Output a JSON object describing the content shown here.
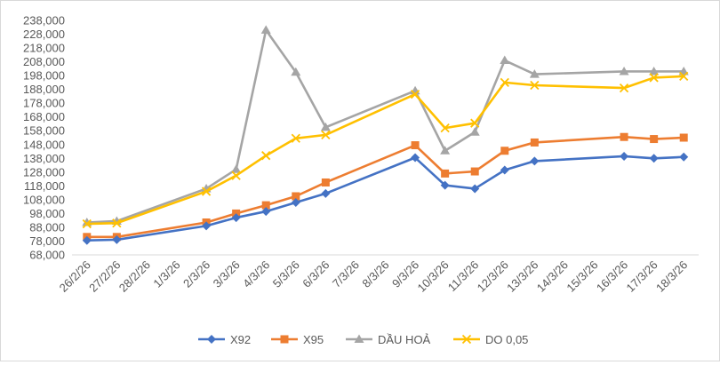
{
  "chart_data": {
    "type": "line",
    "title": "",
    "xlabel": "",
    "ylabel": "",
    "categories": [
      "26/2/26",
      "27/2/26",
      "28/2/26",
      "1/3/26",
      "2/3/26",
      "3/3/26",
      "4/3/26",
      "5/3/26",
      "6/3/26",
      "7/3/26",
      "8/3/26",
      "9/3/26",
      "10/3/26",
      "11/3/26",
      "12/3/26",
      "13/3/26",
      "14/3/26",
      "15/3/26",
      "16/3/26",
      "17/3/26",
      "18/3/26"
    ],
    "y_ticks": [
      "68,000",
      "78,000",
      "88,000",
      "98,000",
      "108,000",
      "118,000",
      "128,000",
      "138,000",
      "148,000",
      "158,000",
      "168,000",
      "178,000",
      "188,000",
      "198,000",
      "208,000",
      "218,000",
      "228,000",
      "238,000"
    ],
    "ylim": [
      68000,
      238000
    ],
    "grid": false,
    "legend_position": "bottom",
    "series": [
      {
        "name": "X92",
        "color": "#4472C4",
        "marker": "diamond",
        "values": [
          78500,
          79000,
          null,
          null,
          89000,
          95000,
          99500,
          106000,
          112500,
          null,
          null,
          138500,
          118500,
          116000,
          129500,
          136000,
          null,
          null,
          139500,
          138000,
          139000
        ]
      },
      {
        "name": "X95",
        "color": "#ED7D31",
        "marker": "square",
        "values": [
          81000,
          81000,
          null,
          null,
          91500,
          98000,
          104000,
          110500,
          120500,
          null,
          null,
          147500,
          127000,
          128500,
          143500,
          149500,
          null,
          null,
          153500,
          152000,
          153000
        ]
      },
      {
        "name": "DẦU HOẢ",
        "color": "#A5A5A5",
        "marker": "triangle",
        "values": [
          91500,
          92500,
          null,
          null,
          116000,
          130000,
          231000,
          200500,
          160500,
          null,
          null,
          187000,
          143500,
          157000,
          209000,
          199000,
          null,
          null,
          201000,
          201000,
          201000
        ]
      },
      {
        "name": "DO 0,05",
        "color": "#FFC000",
        "marker": "x",
        "values": [
          90500,
          91000,
          null,
          null,
          114000,
          125500,
          140000,
          152500,
          155000,
          null,
          null,
          184500,
          160000,
          163500,
          193000,
          191000,
          null,
          null,
          189000,
          196500,
          197500
        ]
      }
    ]
  }
}
